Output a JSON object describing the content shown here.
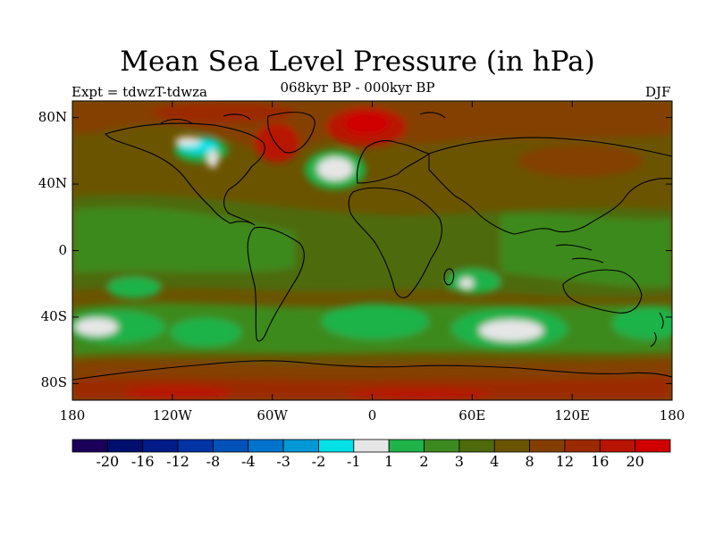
{
  "title": "Mean Sea Level Pressure (in hPa)",
  "subtitle": "068kyr BP - 000kyr BP",
  "experiment": "Expt = tdwzT-tdwza",
  "season": "DJF",
  "map": {
    "lat_labels": [
      "80N",
      "40N",
      "0",
      "40S",
      "80S"
    ],
    "lat_values": [
      80,
      40,
      0,
      -40,
      -80
    ],
    "lon_labels": [
      "180",
      "120W",
      "60W",
      "0",
      "60E",
      "120E",
      "180"
    ],
    "lon_values": [
      -180,
      -120,
      -60,
      0,
      60,
      120,
      180
    ]
  },
  "colorbar": {
    "colors": [
      "#1a0059",
      "#000f6d",
      "#001c89",
      "#0033a3",
      "#0051b8",
      "#0073cc",
      "#0099d6",
      "#00e1e6",
      "#e6e6e6",
      "#1fb349",
      "#3c8a1f",
      "#4e6a0a",
      "#6b5400",
      "#843f00",
      "#9c2a00",
      "#b81400",
      "#d00000"
    ],
    "labels": [
      "-20",
      "-16",
      "-12",
      "-8",
      "-4",
      "-3",
      "-2",
      "-1",
      "1",
      "2",
      "3",
      "4",
      "8",
      "12",
      "16",
      "20"
    ]
  }
}
